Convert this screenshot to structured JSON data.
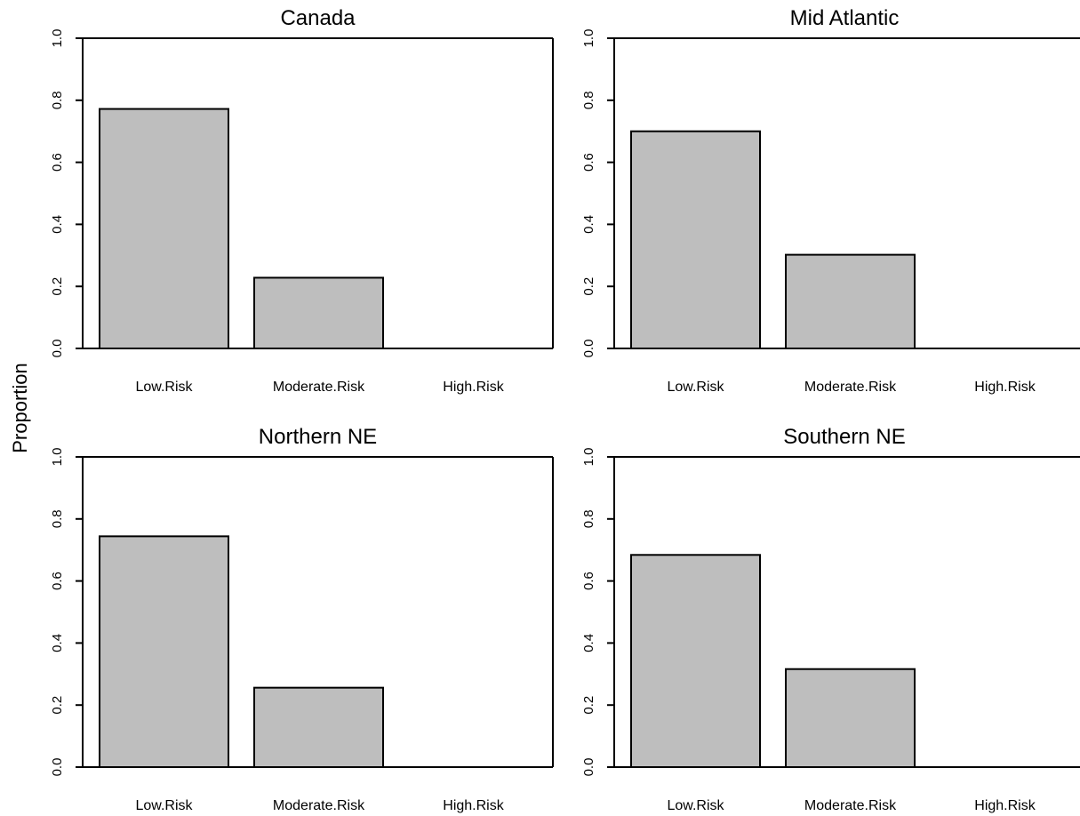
{
  "ylabel": "Proportion",
  "chart_data": [
    {
      "type": "bar",
      "title": "Canada",
      "categories": [
        "Low.Risk",
        "Moderate.Risk",
        "High.Risk"
      ],
      "values": [
        0.772,
        0.228,
        0.0
      ],
      "ylim": [
        0,
        1
      ],
      "yticks": [
        "0.0",
        "0.2",
        "0.4",
        "0.6",
        "0.8",
        "1.0"
      ],
      "bar_color": "#bebebe"
    },
    {
      "type": "bar",
      "title": "Mid Atlantic",
      "categories": [
        "Low.Risk",
        "Moderate.Risk",
        "High.Risk"
      ],
      "values": [
        0.7,
        0.302,
        0.0
      ],
      "ylim": [
        0,
        1
      ],
      "yticks": [
        "0.0",
        "0.2",
        "0.4",
        "0.6",
        "0.8",
        "1.0"
      ],
      "bar_color": "#bebebe"
    },
    {
      "type": "bar",
      "title": "Northern NE",
      "categories": [
        "Low.Risk",
        "Moderate.Risk",
        "High.Risk"
      ],
      "values": [
        0.744,
        0.256,
        0.0
      ],
      "ylim": [
        0,
        1
      ],
      "yticks": [
        "0.0",
        "0.2",
        "0.4",
        "0.6",
        "0.8",
        "1.0"
      ],
      "bar_color": "#bebebe"
    },
    {
      "type": "bar",
      "title": "Southern NE",
      "categories": [
        "Low.Risk",
        "Moderate.Risk",
        "High.Risk"
      ],
      "values": [
        0.684,
        0.316,
        0.0
      ],
      "ylim": [
        0,
        1
      ],
      "yticks": [
        "0.0",
        "0.2",
        "0.4",
        "0.6",
        "0.8",
        "1.0"
      ],
      "bar_color": "#bebebe"
    }
  ]
}
